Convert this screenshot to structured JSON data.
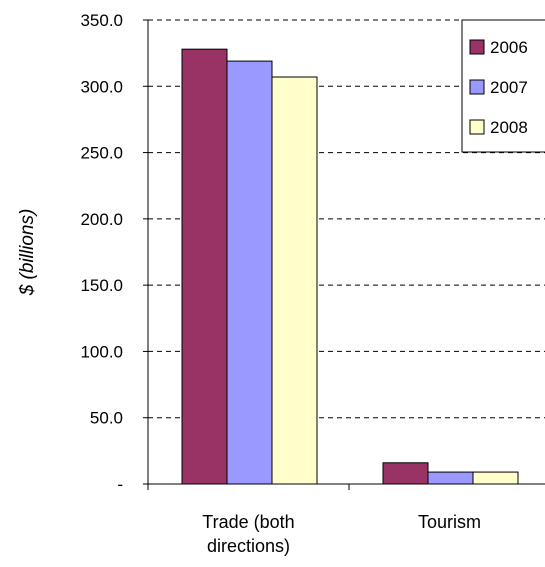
{
  "chart_data": {
    "type": "bar",
    "title": "",
    "xlabel": "",
    "ylabel": "$ (billions)",
    "ylim": [
      0,
      350
    ],
    "yticks": [
      0,
      50,
      100,
      150,
      200,
      250,
      300,
      350
    ],
    "ytick_labels": [
      "-",
      "50.0",
      "100.0",
      "150.0",
      "200.0",
      "250.0",
      "300.0",
      "350.0"
    ],
    "grid": "dashed horizontal",
    "legend_position": "top-right",
    "categories": [
      "Trade (both directions)",
      "Tourism"
    ],
    "category_lines": [
      [
        "Trade (both",
        "directions)"
      ],
      [
        "Tourism"
      ]
    ],
    "series": [
      {
        "name": "2006",
        "color": "#993366",
        "values": [
          328,
          16
        ]
      },
      {
        "name": "2007",
        "color": "#9999ff",
        "values": [
          319,
          9
        ]
      },
      {
        "name": "2008",
        "color": "#ffffcc",
        "values": [
          307,
          9
        ]
      }
    ]
  }
}
